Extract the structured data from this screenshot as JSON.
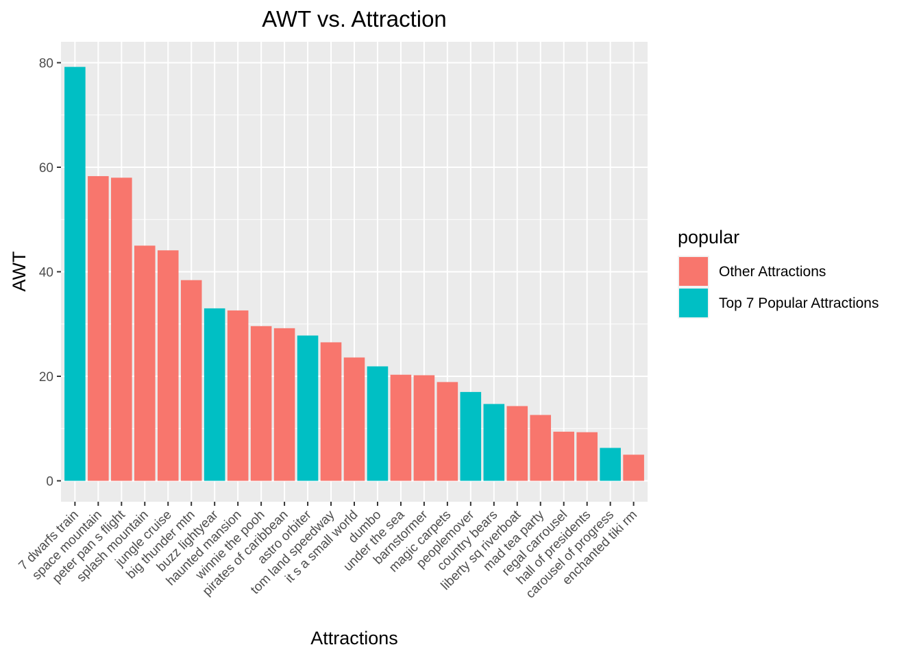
{
  "chart_data": {
    "type": "bar",
    "title": "AWT vs. Attraction",
    "xlabel": "Attractions",
    "ylabel": "AWT",
    "ylim": [
      -4,
      84
    ],
    "yticks": [
      0,
      20,
      40,
      60,
      80
    ],
    "grid": true,
    "legend": {
      "title": "popular",
      "placement": "right",
      "entries": [
        {
          "label": "Other Attractions",
          "color": "#F8766D"
        },
        {
          "label": "Top 7 Popular Attractions",
          "color": "#00BFC4"
        }
      ]
    },
    "categories": [
      "7 dwarfs train",
      "space mountain",
      "peter pan s flight",
      "splash mountain",
      "jungle cruise",
      "big thunder mtn",
      "buzz lightyear",
      "haunted mansion",
      "winnie the pooh",
      "pirates of caribbean",
      "astro orbiter",
      "tom land speedway",
      "it s a small world",
      "dumbo",
      "under the sea",
      "barnstormer",
      "magic carpets",
      "peoplemover",
      "country bears",
      "liberty sq riverboat",
      "mad tea party",
      "regal carrousel",
      "hall of presidents",
      "carousel of progress",
      "enchanted tiki rm"
    ],
    "values": [
      79.2,
      58.3,
      58.0,
      45.0,
      44.1,
      38.4,
      33.0,
      32.6,
      29.6,
      29.2,
      27.8,
      26.5,
      23.6,
      21.9,
      20.3,
      20.2,
      18.9,
      17.0,
      14.7,
      14.3,
      12.6,
      9.4,
      9.3,
      6.3,
      5.0
    ],
    "groups": [
      "Top 7 Popular Attractions",
      "Other Attractions",
      "Other Attractions",
      "Other Attractions",
      "Other Attractions",
      "Other Attractions",
      "Top 7 Popular Attractions",
      "Other Attractions",
      "Other Attractions",
      "Other Attractions",
      "Top 7 Popular Attractions",
      "Other Attractions",
      "Other Attractions",
      "Top 7 Popular Attractions",
      "Other Attractions",
      "Other Attractions",
      "Other Attractions",
      "Top 7 Popular Attractions",
      "Top 7 Popular Attractions",
      "Other Attractions",
      "Other Attractions",
      "Other Attractions",
      "Other Attractions",
      "Top 7 Popular Attractions",
      "Other Attractions"
    ]
  }
}
